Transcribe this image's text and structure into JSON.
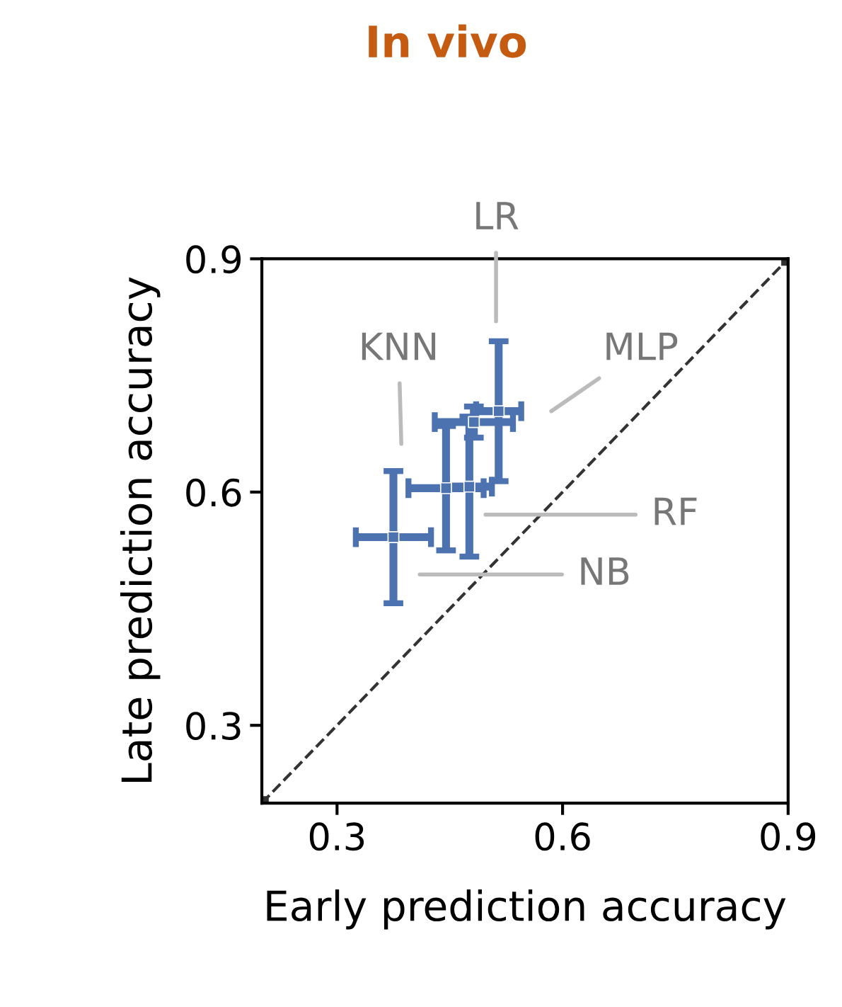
{
  "chart_data": {
    "type": "scatter",
    "title": "In vivo",
    "xlabel": "Early prediction accuracy",
    "ylabel": "Late prediction accuracy",
    "xlim": [
      0.2,
      0.9
    ],
    "ylim": [
      0.2,
      0.9
    ],
    "xticks": [
      0.3,
      0.6,
      0.9
    ],
    "yticks": [
      0.3,
      0.6,
      0.9
    ],
    "grid": false,
    "legend": false,
    "marker": "square",
    "series": [
      {
        "color": "#4c72b0",
        "x": [
          0.515,
          0.482,
          0.476,
          0.445,
          0.375
        ],
        "values": [
          0.704,
          0.69,
          0.607,
          0.605,
          0.542
        ],
        "xerrors": [
          0.03,
          0.052,
          0.03,
          0.05,
          0.05
        ],
        "errors": [
          0.09,
          0.02,
          0.09,
          0.08,
          0.085
        ]
      },
      {
        "type": "line",
        "color": "#333333",
        "line_style": "dashed",
        "x": [
          0.2,
          0.9
        ],
        "values": [
          0.2,
          0.9
        ]
      }
    ],
    "annotations": [
      "LR",
      "KNN",
      "MLP",
      "RF",
      "NB"
    ]
  }
}
